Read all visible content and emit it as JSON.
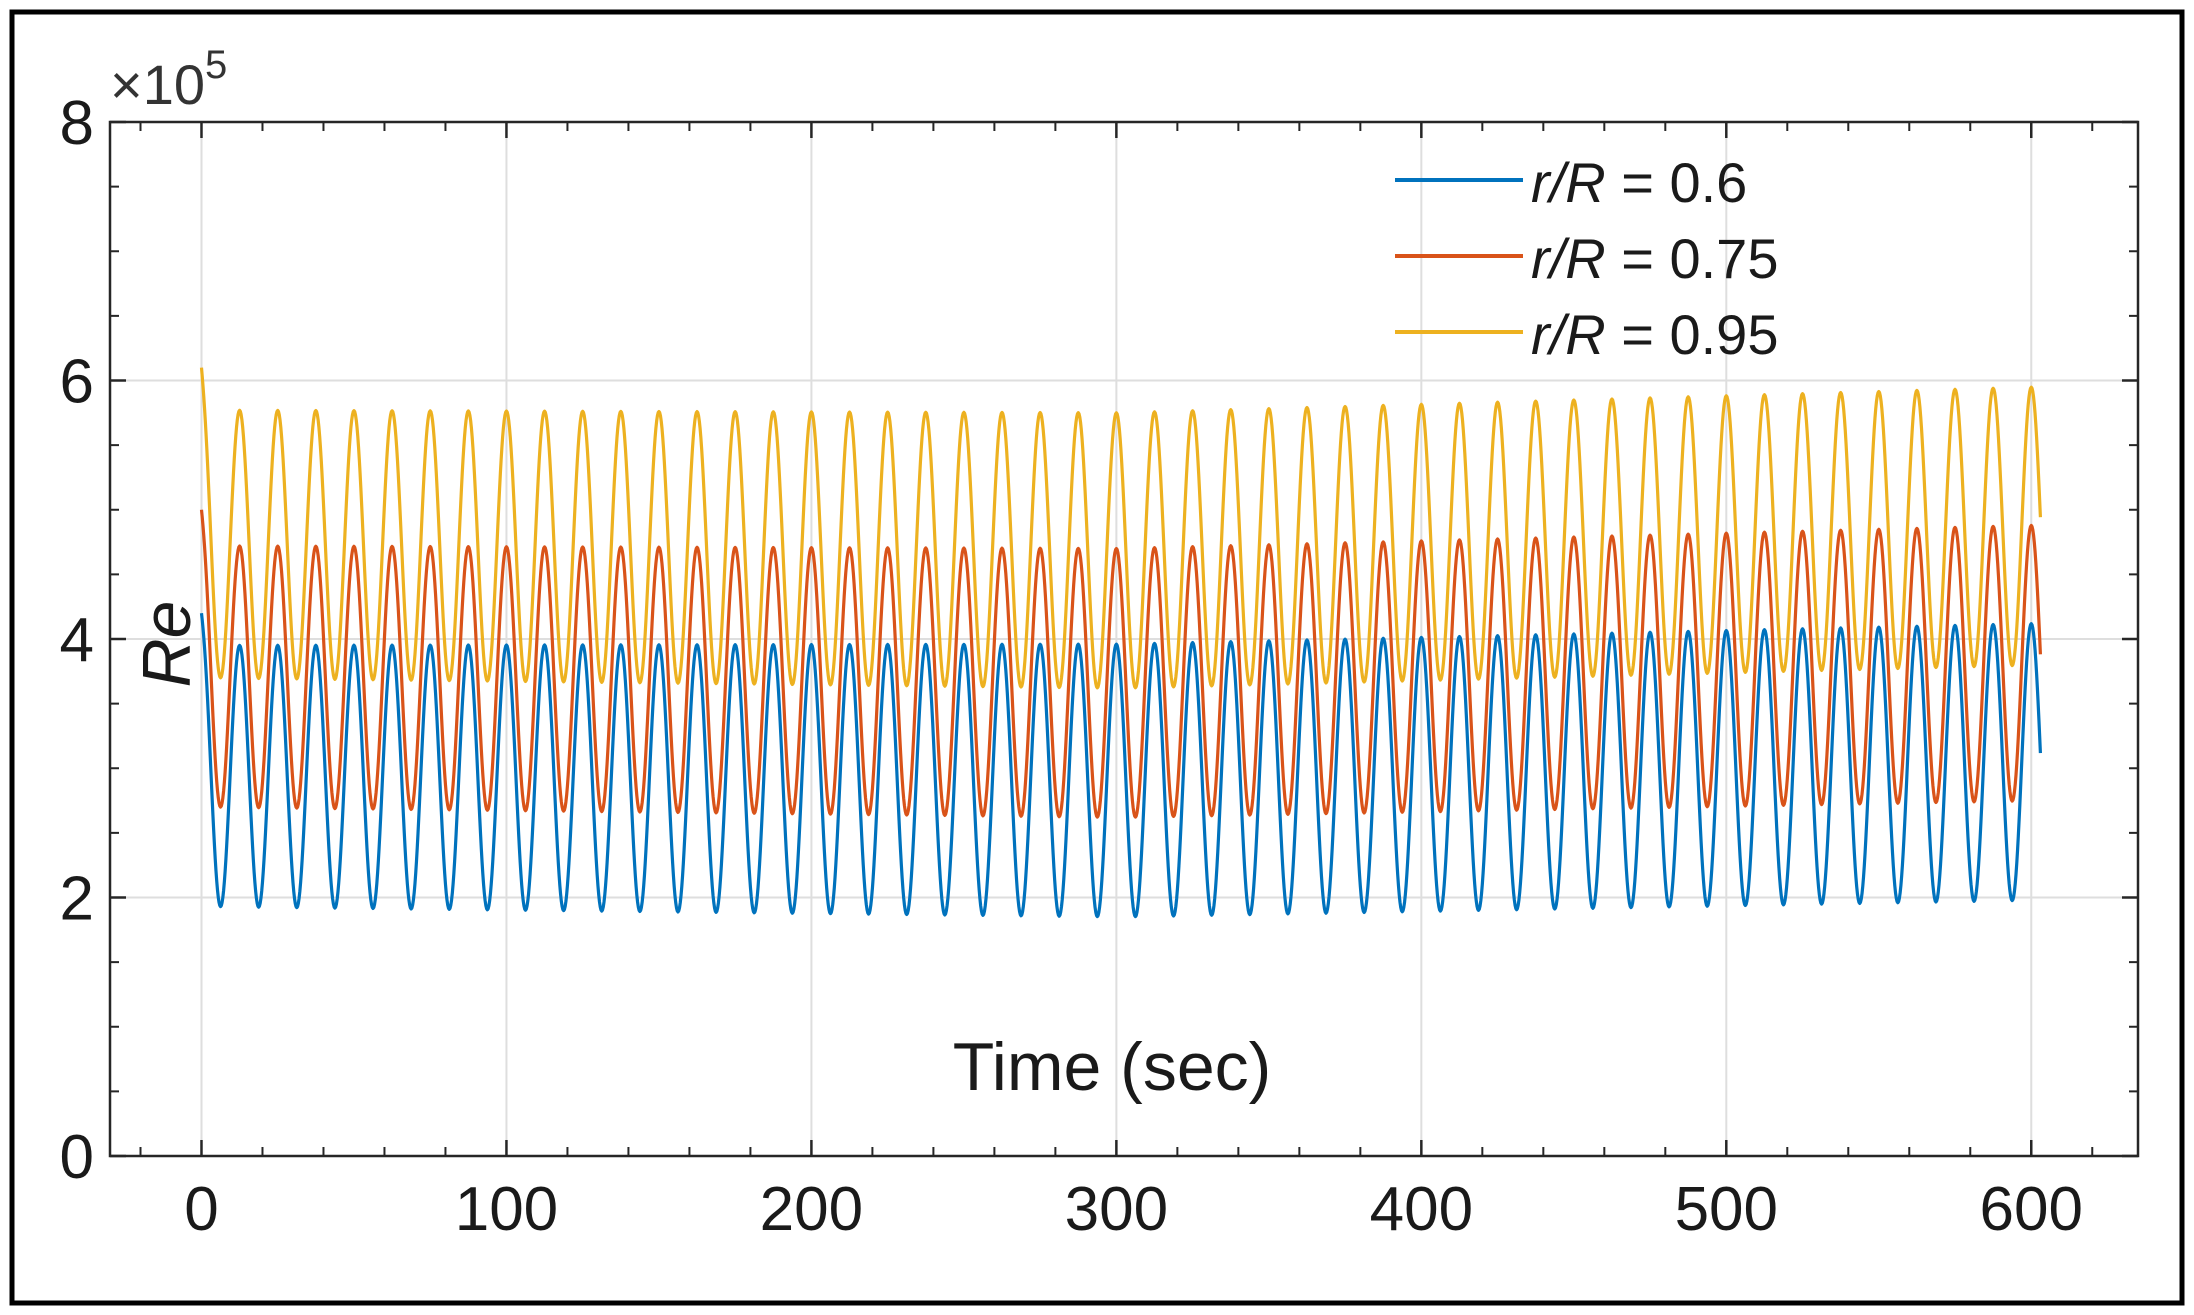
{
  "chart_data": {
    "type": "line",
    "xlabel": "Time (sec)",
    "ylabel": "Re",
    "xlim": [
      -30,
      635
    ],
    "ylim": [
      0,
      8
    ],
    "x_ticks": [
      "0",
      "100",
      "200",
      "300",
      "400",
      "500",
      "600"
    ],
    "y_ticks": [
      "0",
      "2",
      "4",
      "6",
      "8"
    ],
    "y_exponent_prefix": "×10",
    "y_exponent_power": "5",
    "grid": true,
    "legend_position": "top-right",
    "period_sec": 12.5,
    "x_range": [
      0,
      603
    ],
    "series": [
      {
        "name": "r/R = 0.6",
        "legend_var": "r/R",
        "legend_value": " = 0.6",
        "color": "#0072BD",
        "start_value": 4.2,
        "peak_start": 3.95,
        "peak_mid": 3.96,
        "peak_end": 4.12,
        "trough_start": 1.93,
        "trough_mid": 1.85,
        "trough_end": 1.98
      },
      {
        "name": "r/R = 0.75",
        "legend_var": "r/R",
        "legend_value": " = 0.75",
        "color": "#D95319",
        "start_value": 5.0,
        "peak_start": 4.72,
        "peak_mid": 4.7,
        "peak_end": 4.88,
        "trough_start": 2.7,
        "trough_mid": 2.62,
        "trough_end": 2.75
      },
      {
        "name": "r/R = 0.95",
        "legend_var": "r/R",
        "legend_value": " = 0.95",
        "color": "#EDB120",
        "start_value": 6.1,
        "peak_start": 5.77,
        "peak_mid": 5.75,
        "peak_end": 5.95,
        "trough_start": 3.7,
        "trough_mid": 3.62,
        "trough_end": 3.8
      }
    ]
  }
}
